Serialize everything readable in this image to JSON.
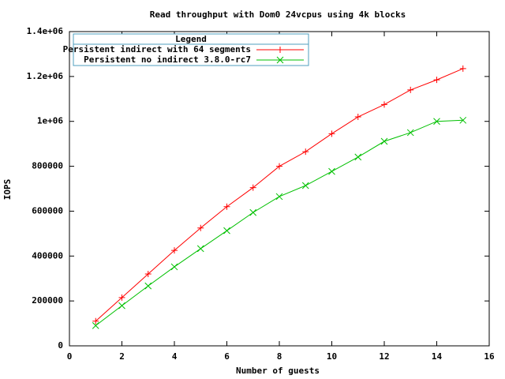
{
  "chart_data": {
    "type": "line",
    "title": "Read throughput with Dom0 24vcpus using 4k blocks",
    "x_label": "Number of guests",
    "y_label": "IOPS",
    "legend_title": "Legend",
    "legend": "upper left",
    "x": [
      1,
      2,
      3,
      4,
      5,
      6,
      7,
      8,
      9,
      10,
      11,
      12,
      13,
      14,
      15
    ],
    "series": [
      {
        "name": "Persistent indirect with 64 segments",
        "color": "#ff0000",
        "marker": "plus",
        "values": [
          110000,
          215000,
          320000,
          425000,
          525000,
          620000,
          705000,
          800000,
          865000,
          945000,
          1020000,
          1075000,
          1140000,
          1185000,
          1235000
        ]
      },
      {
        "name": "Persistent no indirect 3.8.0-rc7",
        "color": "#00c000",
        "marker": "cross",
        "values": [
          90000,
          179000,
          267000,
          352000,
          433000,
          513000,
          594000,
          665000,
          714000,
          777000,
          841000,
          911000,
          950000,
          1000000,
          1005000
        ]
      }
    ],
    "xlim": [
      0,
      16
    ],
    "xticks": [
      0,
      2,
      4,
      6,
      8,
      10,
      12,
      14,
      16
    ],
    "ylim": [
      0,
      1400000
    ],
    "yticks": [
      0,
      200000,
      400000,
      600000,
      800000,
      {
        "value": 1000000,
        "label": "1e+06"
      },
      {
        "value": 1200000,
        "label": "1.2e+06"
      },
      {
        "value": 1400000,
        "label": "1.4e+06"
      }
    ]
  }
}
